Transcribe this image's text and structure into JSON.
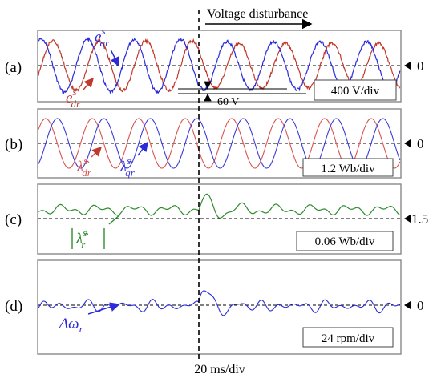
{
  "figure": {
    "disturbance_label": "Voltage disturbance",
    "time_scale": "20 ms/div"
  },
  "panels": [
    {
      "letter": "(a)",
      "scale": "400 V/div",
      "ref_label": "0",
      "annotation": "60 V",
      "signals": [
        {
          "label": "e",
          "sup": "s",
          "sub": "qr",
          "color": "#2b2bd9"
        },
        {
          "label": "e",
          "sup": "s",
          "sub": "dr",
          "color": "#c0392b"
        }
      ]
    },
    {
      "letter": "(b)",
      "scale": "1.2 Wb/div",
      "ref_label": "0",
      "signals": [
        {
          "label": "λ̂",
          "sup": "s",
          "sub": "dr",
          "color": "#d9534f"
        },
        {
          "label": "λ̂",
          "sup": "s",
          "sub": "qr",
          "color": "#3b3bd9"
        }
      ]
    },
    {
      "letter": "(c)",
      "scale": "0.06 Wb/div",
      "ref_label": "1.5",
      "signals": [
        {
          "label": "λ̂",
          "sup": "s",
          "sub": "r",
          "color": "#2e8b2e"
        }
      ]
    },
    {
      "letter": "(d)",
      "scale": "24 rpm/div",
      "ref_label": "0",
      "signals": [
        {
          "label": "Δω",
          "sub": "r",
          "color": "#2b2bd9"
        }
      ]
    }
  ],
  "colors": {
    "blue": "#2b2bd9",
    "red": "#c0392b",
    "green": "#2e8b2e",
    "frame": "#888888"
  }
}
